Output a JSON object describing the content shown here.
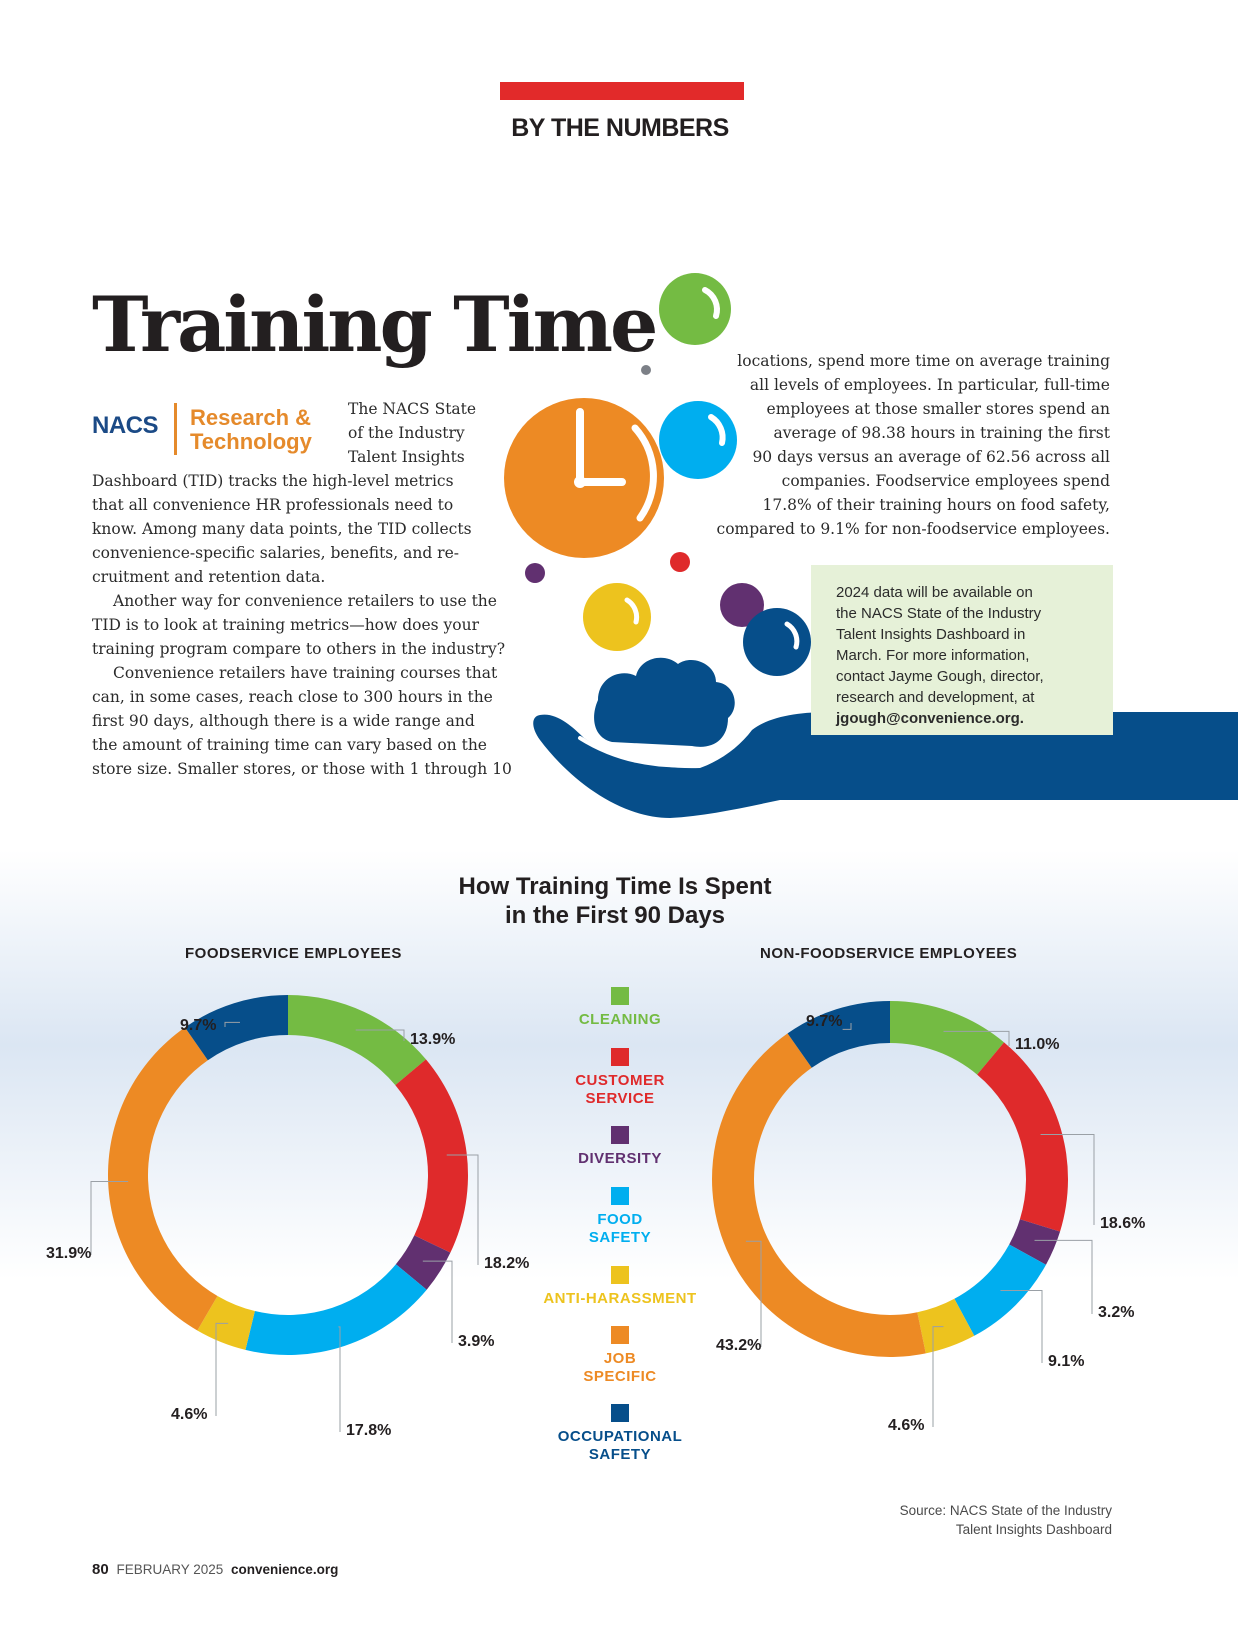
{
  "header": {
    "section": "BY THE NUMBERS"
  },
  "article": {
    "title": "Training Time",
    "logo": {
      "brand": "NACS",
      "unit_line1": "Research &",
      "unit_line2": "Technology"
    },
    "col1_lines": [
      "The NACS State",
      "of the Industry",
      "Talent Insights",
      "Dashboard (TID) tracks the high-level metrics",
      "that all convenience HR professionals need to",
      "know. Among many data points, the TID collects",
      "convenience-specific salaries, benefits, and re-",
      "cruitment and retention data.",
      "Another way for convenience retailers to use the",
      "TID is to look at training metrics—how does your",
      "training program compare to others in the industry?",
      "Convenience retailers have training courses that",
      "can, in some cases, reach close to 300 hours in the",
      "first 90 days, although there is a wide range and",
      "the amount of training time can vary based on the",
      "store size. Smaller stores, or those with 1 through 10"
    ],
    "col2_lines": [
      "locations, spend more time on average training",
      "all levels of employees. In particular, full-time",
      "employees at those smaller stores spend an",
      "average of 98.38 hours in training the first",
      "90 days versus an average of 62.56 across all",
      "companies. Foodservice employees spend",
      "17.8% of their training hours on food safety,",
      "compared to 9.1% for non-foodservice employees."
    ],
    "info_box": {
      "lines": [
        "2024 data will be available on",
        "the NACS State of the Industry",
        "Talent Insights Dashboard in",
        "March. For more information,",
        "contact Jayme Gough, director,",
        "research and development, at"
      ],
      "email": "jgough@convenience.org."
    }
  },
  "colors": {
    "cleaning": "#74bb43",
    "customer_service": "#df2a2b",
    "diversity": "#613070",
    "food_safety": "#00aeef",
    "anti_harassment": "#edc31e",
    "job_specific": "#ed8a24",
    "occupational_safety": "#064e8a"
  },
  "chart_data": {
    "type": "pie",
    "title_line1": "How Training Time Is Spent",
    "title_line2": "in the First 90 Days",
    "legend": [
      {
        "key": "cleaning",
        "line1": "CLEANING",
        "line2": ""
      },
      {
        "key": "customer_service",
        "line1": "CUSTOMER",
        "line2": "SERVICE"
      },
      {
        "key": "diversity",
        "line1": "DIVERSITY",
        "line2": ""
      },
      {
        "key": "food_safety",
        "line1": "FOOD",
        "line2": "SAFETY"
      },
      {
        "key": "anti_harassment",
        "line1": "ANTI-HARASSMENT",
        "line2": ""
      },
      {
        "key": "job_specific",
        "line1": "JOB",
        "line2": "SPECIFIC"
      },
      {
        "key": "occupational_safety",
        "line1": "OCCUPATIONAL",
        "line2": "SAFETY"
      }
    ],
    "charts": [
      {
        "subtitle": "FOODSERVICE EMPLOYEES",
        "slices": [
          {
            "key": "cleaning",
            "value": 13.9,
            "label": "13.9%"
          },
          {
            "key": "customer_service",
            "value": 18.2,
            "label": "18.2%"
          },
          {
            "key": "diversity",
            "value": 3.9,
            "label": "3.9%"
          },
          {
            "key": "food_safety",
            "value": 17.8,
            "label": "17.8%"
          },
          {
            "key": "anti_harassment",
            "value": 4.6,
            "label": "4.6%"
          },
          {
            "key": "job_specific",
            "value": 31.9,
            "label": "31.9%"
          },
          {
            "key": "occupational_safety",
            "value": 9.7,
            "label": "9.7%"
          }
        ]
      },
      {
        "subtitle": "NON-FOODSERVICE EMPLOYEES",
        "slices": [
          {
            "key": "cleaning",
            "value": 11.0,
            "label": "11.0%"
          },
          {
            "key": "customer_service",
            "value": 18.6,
            "label": "18.6%"
          },
          {
            "key": "diversity",
            "value": 3.2,
            "label": "3.2%"
          },
          {
            "key": "food_safety",
            "value": 9.1,
            "label": "9.1%"
          },
          {
            "key": "anti_harassment",
            "value": 4.6,
            "label": "4.6%"
          },
          {
            "key": "job_specific",
            "value": 43.2,
            "label": "43.2%"
          },
          {
            "key": "occupational_safety",
            "value": 9.7,
            "label": "9.7%"
          }
        ]
      }
    ]
  },
  "source": {
    "line1": "Source: NACS State of the Industry",
    "line2": "Talent Insights Dashboard"
  },
  "footer": {
    "page": "80",
    "date": "FEBRUARY 2025",
    "site": "convenience.org"
  }
}
